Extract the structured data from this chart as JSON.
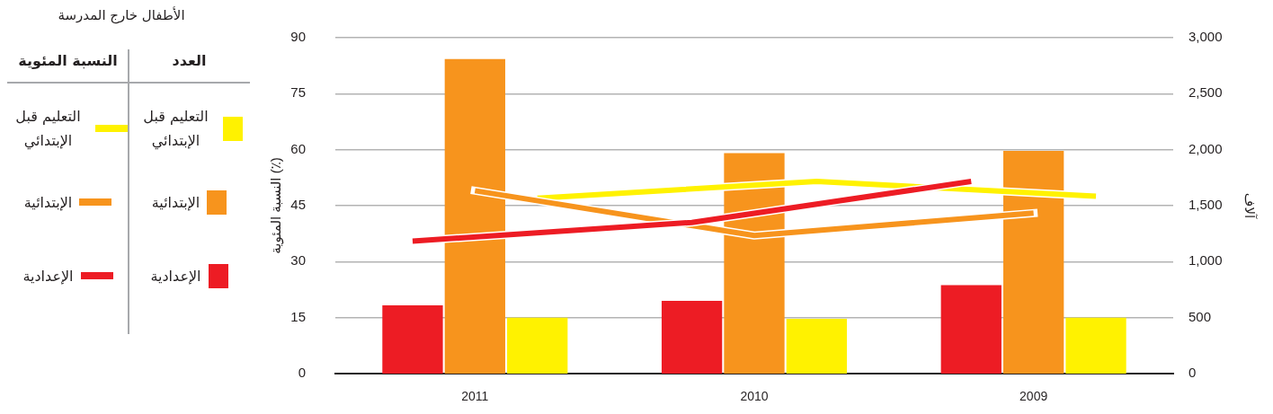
{
  "chart_data": {
    "type": "bar",
    "categories": [
      "2011",
      "2010",
      "2009"
    ],
    "ylabel": "النسبة المئوية (٪)",
    "y2label": "آلاف",
    "legend_title": "الأطفال خارج المدرسة",
    "annotations": [
      "العدد",
      "النسبة المئوية"
    ],
    "series": [
      {
        "name": "الإعدادية",
        "axis": "y2",
        "color": "#ed1c24",
        "values": [
          610,
          650,
          790
        ]
      },
      {
        "name": "الإبتدائية",
        "axis": "y2",
        "color": "#f7941d",
        "values": [
          2810,
          1970,
          1990
        ]
      },
      {
        "name": "التعليم قبل الإبتدائي",
        "axis": "y2",
        "color": "#fff200",
        "values": [
          500,
          490,
          500
        ]
      },
      {
        "name": "الإعدادية",
        "type": "line",
        "color": "#ed1c24",
        "values": [
          35.5,
          40.5,
          51.5
        ]
      },
      {
        "name": "الإبتدائية",
        "type": "line",
        "color": "#f7941d",
        "values": [
          49,
          37,
          43
        ]
      },
      {
        "name": "التعليم قبل الإبتدائي",
        "type": "line",
        "color": "#fff200",
        "values": [
          47,
          51.5,
          47.5
        ]
      }
    ],
    "ylim": [
      0,
      90
    ],
    "yticks": [
      0,
      15,
      30,
      45,
      60,
      75,
      90
    ],
    "y2lim": [
      0,
      3000
    ],
    "y2ticks": [
      0,
      500,
      {
        "value": 1000,
        "label": "1,000"
      },
      {
        "value": 1500,
        "label": "1,500"
      },
      {
        "value": 2000,
        "label": "2,000"
      },
      {
        "value": 2500,
        "label": "2,500"
      },
      {
        "value": 3000,
        "label": "3,000"
      }
    ],
    "grid": "y",
    "legend": "left",
    "marker": "none",
    "line_style": "solid"
  }
}
